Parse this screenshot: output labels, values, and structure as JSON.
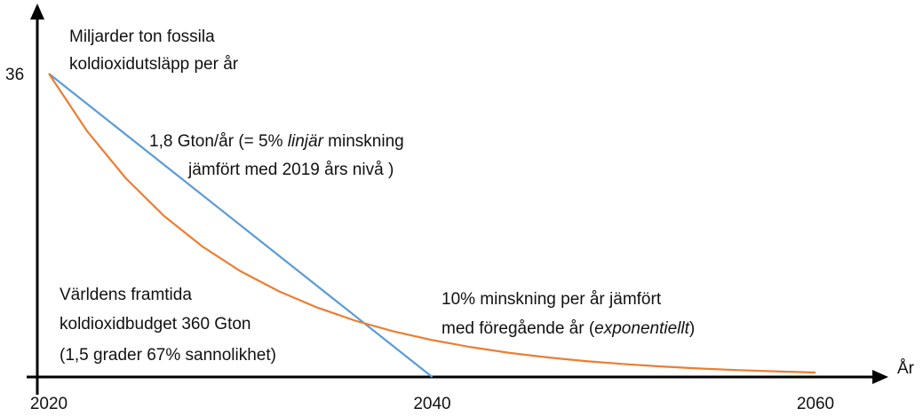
{
  "chart_data": {
    "type": "line",
    "y_label": [
      "Miljarder ton fossila",
      "koldioxidutsläpp per år"
    ],
    "x_label": "År",
    "xlim": [
      2020,
      2060
    ],
    "xticks": [
      2020,
      2040,
      2060
    ],
    "ylim": [
      0,
      36
    ],
    "yticks": [
      36
    ],
    "series": [
      {
        "color": "#5b9bd5",
        "x": [
          2020,
          2040
        ],
        "values": [
          36,
          0
        ]
      },
      {
        "color": "#ed7d31",
        "x": [
          2020,
          2022,
          2024,
          2026,
          2028,
          2030,
          2032,
          2034,
          2036,
          2038,
          2040,
          2042,
          2044,
          2046,
          2048,
          2050,
          2052,
          2054,
          2056,
          2058,
          2060
        ],
        "values": [
          36,
          29.16,
          23.62,
          19.13,
          15.5,
          12.55,
          10.17,
          8.24,
          6.67,
          5.4,
          4.38,
          3.55,
          2.87,
          2.33,
          1.88,
          1.53,
          1.24,
          1.0,
          0.81,
          0.66,
          0.53
        ]
      }
    ],
    "annotations": [
      {
        "lines": [
          [
            {
              "text": "1,8 Gton/år (= 5% "
            },
            {
              "text": "linjär",
              "italic": true
            },
            {
              "text": " minskning"
            }
          ],
          [
            {
              "text": "jämfört med 2019 års nivå )"
            }
          ]
        ]
      },
      {
        "lines": [
          [
            {
              "text": "Världens framtida"
            }
          ],
          [
            {
              "text": "koldioxidbudget 360 Gton"
            }
          ],
          [
            {
              "text": "(1,5 grader 67% sannolikhet)"
            }
          ]
        ]
      },
      {
        "lines": [
          [
            {
              "text": "10% minskning per år jämfört"
            }
          ],
          [
            {
              "text": "med föregående år ("
            },
            {
              "text": "exponentiellt",
              "italic": true
            },
            {
              "text": ")"
            }
          ]
        ]
      }
    ]
  }
}
